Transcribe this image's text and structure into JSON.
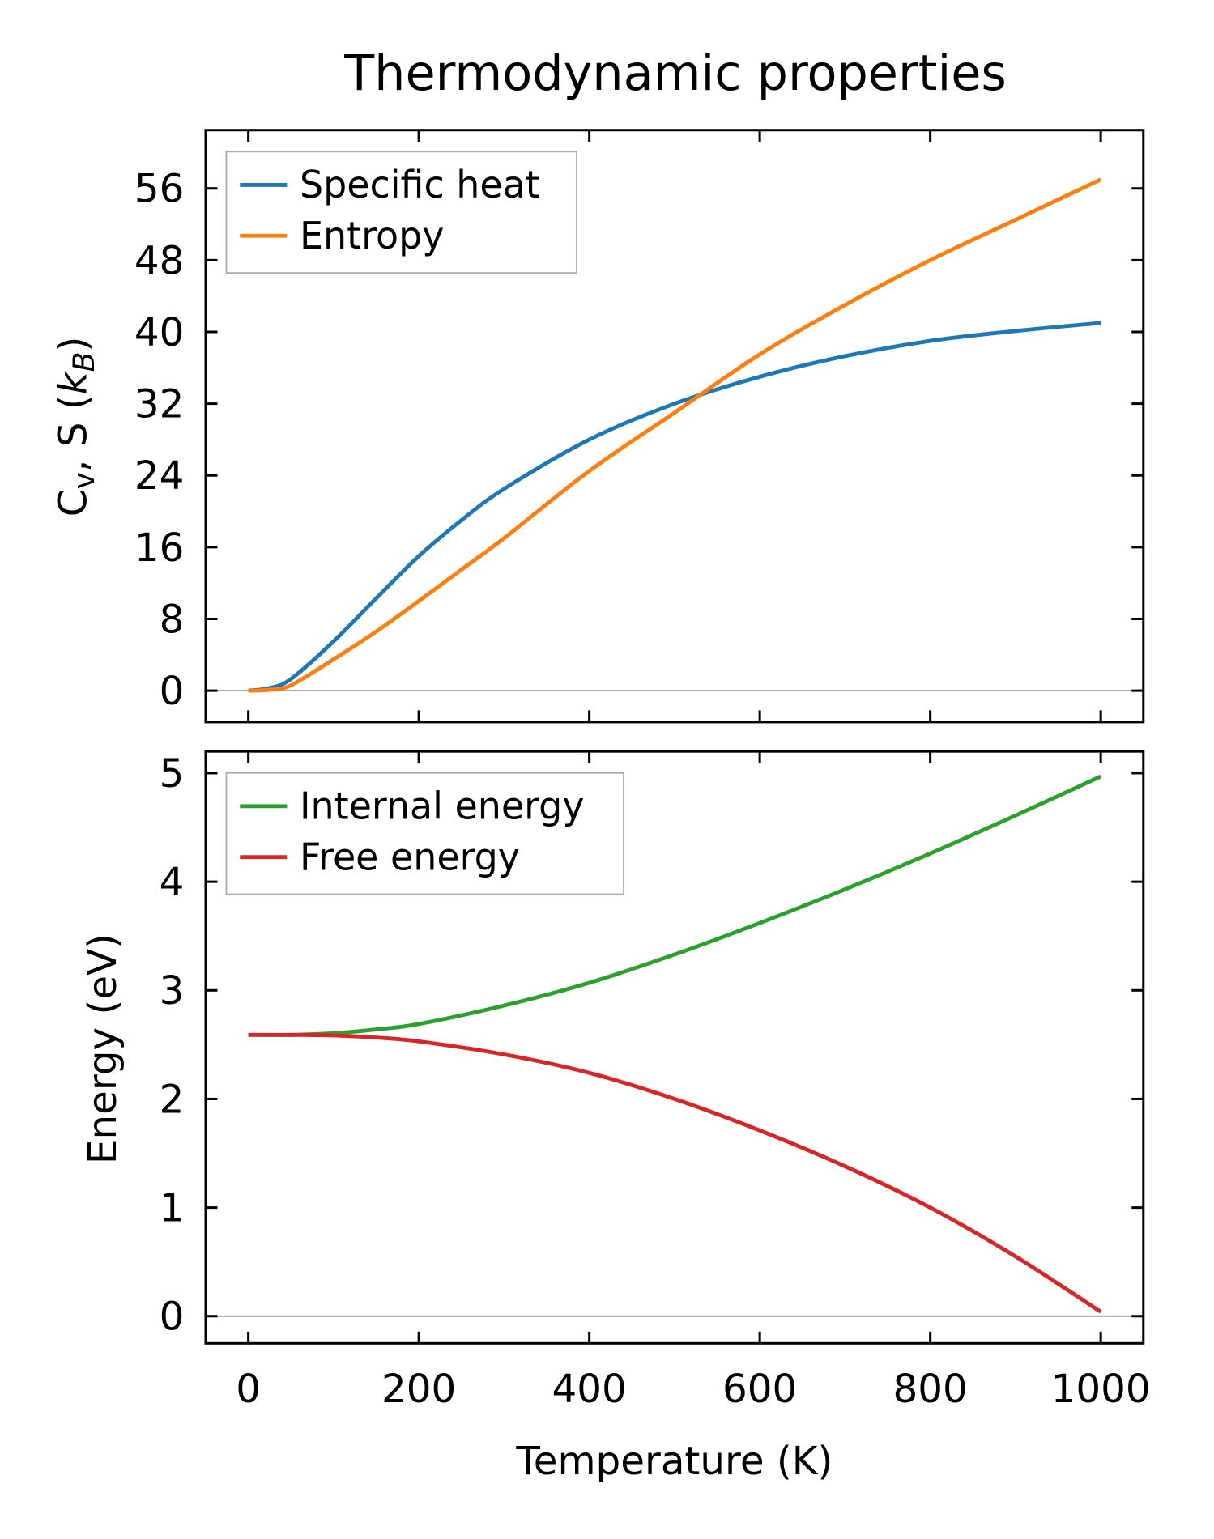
{
  "chart_data": [
    {
      "type": "line",
      "title": "Thermodynamic properties",
      "xlabel": "Temperature (K)",
      "ylabel": "Cv, S (kB)",
      "xlim": [
        -50,
        1050
      ],
      "ylim": [
        -3.5,
        62.5
      ],
      "xticks": [
        0,
        200,
        400,
        600,
        800,
        1000
      ],
      "yticks": [
        0,
        8,
        16,
        24,
        32,
        40,
        48,
        56
      ],
      "legend": "top-left",
      "series": [
        {
          "name": "Specific heat",
          "color": "#1f77b4",
          "x": [
            0,
            25,
            50,
            100,
            150,
            200,
            250,
            300,
            400,
            500,
            600,
            700,
            800,
            900,
            1000
          ],
          "y": [
            0,
            0.3,
            1.3,
            5.5,
            10.3,
            15,
            19,
            22.5,
            28,
            32,
            35,
            37.3,
            39,
            40.1,
            41
          ]
        },
        {
          "name": "Entropy",
          "color": "#ff7f0e",
          "x": [
            0,
            25,
            50,
            100,
            150,
            200,
            250,
            300,
            400,
            500,
            600,
            700,
            800,
            900,
            1000
          ],
          "y": [
            0,
            0.1,
            0.6,
            3.5,
            6.6,
            10,
            13.5,
            17,
            24.5,
            31,
            37.5,
            43,
            48,
            52.5,
            57
          ]
        }
      ]
    },
    {
      "type": "line",
      "xlabel": "Temperature (K)",
      "ylabel": "Energy (eV)",
      "xlim": [
        -50,
        1050
      ],
      "ylim": [
        -0.25,
        5.2
      ],
      "xticks": [
        0,
        200,
        400,
        600,
        800,
        1000
      ],
      "yticks": [
        0,
        1,
        2,
        3,
        4,
        5
      ],
      "legend": "top-left",
      "series": [
        {
          "name": "Internal energy",
          "color": "#2ca02c",
          "x": [
            0,
            50,
            100,
            150,
            200,
            300,
            400,
            500,
            600,
            700,
            800,
            900,
            1000
          ],
          "y": [
            2.59,
            2.59,
            2.605,
            2.64,
            2.69,
            2.86,
            3.07,
            3.33,
            3.62,
            3.93,
            4.26,
            4.61,
            4.97
          ]
        },
        {
          "name": "Free energy",
          "color": "#d62728",
          "x": [
            0,
            50,
            100,
            150,
            200,
            300,
            400,
            500,
            600,
            700,
            800,
            900,
            1000
          ],
          "y": [
            2.59,
            2.59,
            2.585,
            2.565,
            2.53,
            2.41,
            2.24,
            2.0,
            1.71,
            1.38,
            1.0,
            0.55,
            0.04
          ]
        }
      ]
    }
  ]
}
